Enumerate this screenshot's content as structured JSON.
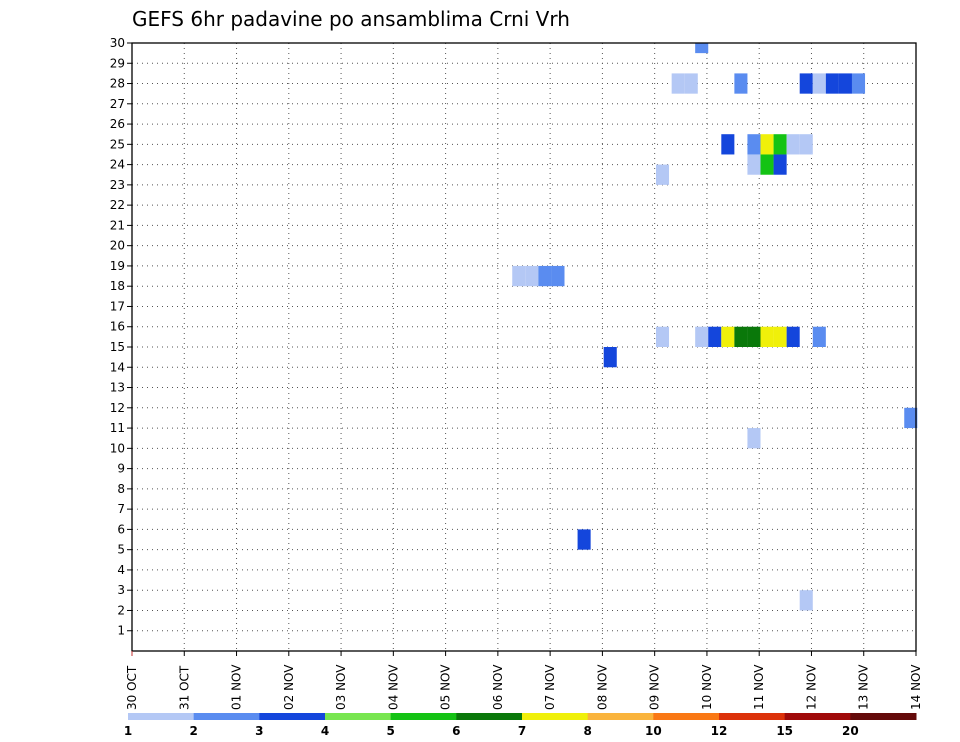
{
  "chart_data": {
    "type": "heatmap",
    "title": "GEFS 6hr padavine po ansamblima Crni Vrh",
    "y_ticks": [
      "1",
      "2",
      "3",
      "4",
      "5",
      "6",
      "7",
      "8",
      "9",
      "10",
      "11",
      "12",
      "13",
      "14",
      "15",
      "16",
      "17",
      "18",
      "19",
      "20",
      "21",
      "22",
      "23",
      "24",
      "25",
      "26",
      "27",
      "28",
      "29",
      "30"
    ],
    "x_ticks": [
      "30 OCT",
      "31 OCT",
      "01 NOV",
      "02 NOV",
      "03 NOV",
      "04 NOV",
      "05 NOV",
      "06 NOV",
      "07 NOV",
      "08 NOV",
      "09 NOV",
      "10 NOV",
      "11 NOV",
      "12 NOV",
      "13 NOV",
      "14 NOV"
    ],
    "xlim": [
      0,
      15
    ],
    "ylim": [
      0,
      30
    ],
    "grid": true,
    "cells": [
      {
        "x": 10.9,
        "y0": 29.5,
        "y1": 30.0,
        "bin": 2
      },
      {
        "x": 10.45,
        "y0": 27.5,
        "y1": 28.5,
        "bin": 1
      },
      {
        "x": 10.7,
        "y0": 27.5,
        "y1": 28.5,
        "bin": 1
      },
      {
        "x": 11.65,
        "y0": 27.5,
        "y1": 28.5,
        "bin": 2
      },
      {
        "x": 12.9,
        "y0": 27.5,
        "y1": 28.5,
        "bin": 3
      },
      {
        "x": 13.15,
        "y0": 27.5,
        "y1": 28.5,
        "bin": 1
      },
      {
        "x": 13.4,
        "y0": 27.5,
        "y1": 28.5,
        "bin": 3
      },
      {
        "x": 13.65,
        "y0": 27.5,
        "y1": 28.5,
        "bin": 3
      },
      {
        "x": 13.9,
        "y0": 27.5,
        "y1": 28.5,
        "bin": 2
      },
      {
        "x": 11.4,
        "y0": 24.5,
        "y1": 25.5,
        "bin": 3
      },
      {
        "x": 11.9,
        "y0": 24.5,
        "y1": 25.5,
        "bin": 2
      },
      {
        "x": 12.15,
        "y0": 24.5,
        "y1": 25.5,
        "bin": 7
      },
      {
        "x": 12.4,
        "y0": 24.5,
        "y1": 25.5,
        "bin": 5
      },
      {
        "x": 12.65,
        "y0": 24.5,
        "y1": 25.5,
        "bin": 1
      },
      {
        "x": 12.9,
        "y0": 24.5,
        "y1": 25.5,
        "bin": 1
      },
      {
        "x": 11.9,
        "y0": 23.5,
        "y1": 24.5,
        "bin": 1
      },
      {
        "x": 12.15,
        "y0": 23.5,
        "y1": 24.5,
        "bin": 5
      },
      {
        "x": 12.4,
        "y0": 23.5,
        "y1": 24.5,
        "bin": 3
      },
      {
        "x": 10.15,
        "y0": 23.0,
        "y1": 24.0,
        "bin": 1
      },
      {
        "x": 7.4,
        "y0": 18.0,
        "y1": 19.0,
        "bin": 1
      },
      {
        "x": 7.65,
        "y0": 18.0,
        "y1": 19.0,
        "bin": 1
      },
      {
        "x": 7.9,
        "y0": 18.0,
        "y1": 19.0,
        "bin": 2
      },
      {
        "x": 8.15,
        "y0": 18.0,
        "y1": 19.0,
        "bin": 2
      },
      {
        "x": 10.15,
        "y0": 15.0,
        "y1": 16.0,
        "bin": 1
      },
      {
        "x": 10.9,
        "y0": 15.0,
        "y1": 16.0,
        "bin": 1
      },
      {
        "x": 11.15,
        "y0": 15.0,
        "y1": 16.0,
        "bin": 3
      },
      {
        "x": 11.4,
        "y0": 15.0,
        "y1": 16.0,
        "bin": 7
      },
      {
        "x": 11.65,
        "y0": 15.0,
        "y1": 16.0,
        "bin": 6
      },
      {
        "x": 11.9,
        "y0": 15.0,
        "y1": 16.0,
        "bin": 6
      },
      {
        "x": 12.15,
        "y0": 15.0,
        "y1": 16.0,
        "bin": 7
      },
      {
        "x": 12.4,
        "y0": 15.0,
        "y1": 16.0,
        "bin": 7
      },
      {
        "x": 12.65,
        "y0": 15.0,
        "y1": 16.0,
        "bin": 3
      },
      {
        "x": 13.15,
        "y0": 15.0,
        "y1": 16.0,
        "bin": 2
      },
      {
        "x": 9.15,
        "y0": 14.0,
        "y1": 15.0,
        "bin": 3
      },
      {
        "x": 14.9,
        "y0": 11.0,
        "y1": 12.0,
        "bin": 2
      },
      {
        "x": 11.9,
        "y0": 10.0,
        "y1": 11.0,
        "bin": 1
      },
      {
        "x": 8.65,
        "y0": 5.0,
        "y1": 6.0,
        "bin": 3
      },
      {
        "x": 12.9,
        "y0": 2.0,
        "y1": 3.0,
        "bin": 1
      }
    ],
    "colorbar": {
      "labels": [
        "1",
        "2",
        "3",
        "4",
        "5",
        "6",
        "7",
        "8",
        "10",
        "12",
        "15",
        "20"
      ],
      "colors": [
        "#b4c8f5",
        "#5a8cf0",
        "#1446dc",
        "#78e650",
        "#14c314",
        "#0a780a",
        "#f0f00a",
        "#fab43c",
        "#fa7814",
        "#dc320a",
        "#a00a0a",
        "#640a0a"
      ]
    }
  }
}
